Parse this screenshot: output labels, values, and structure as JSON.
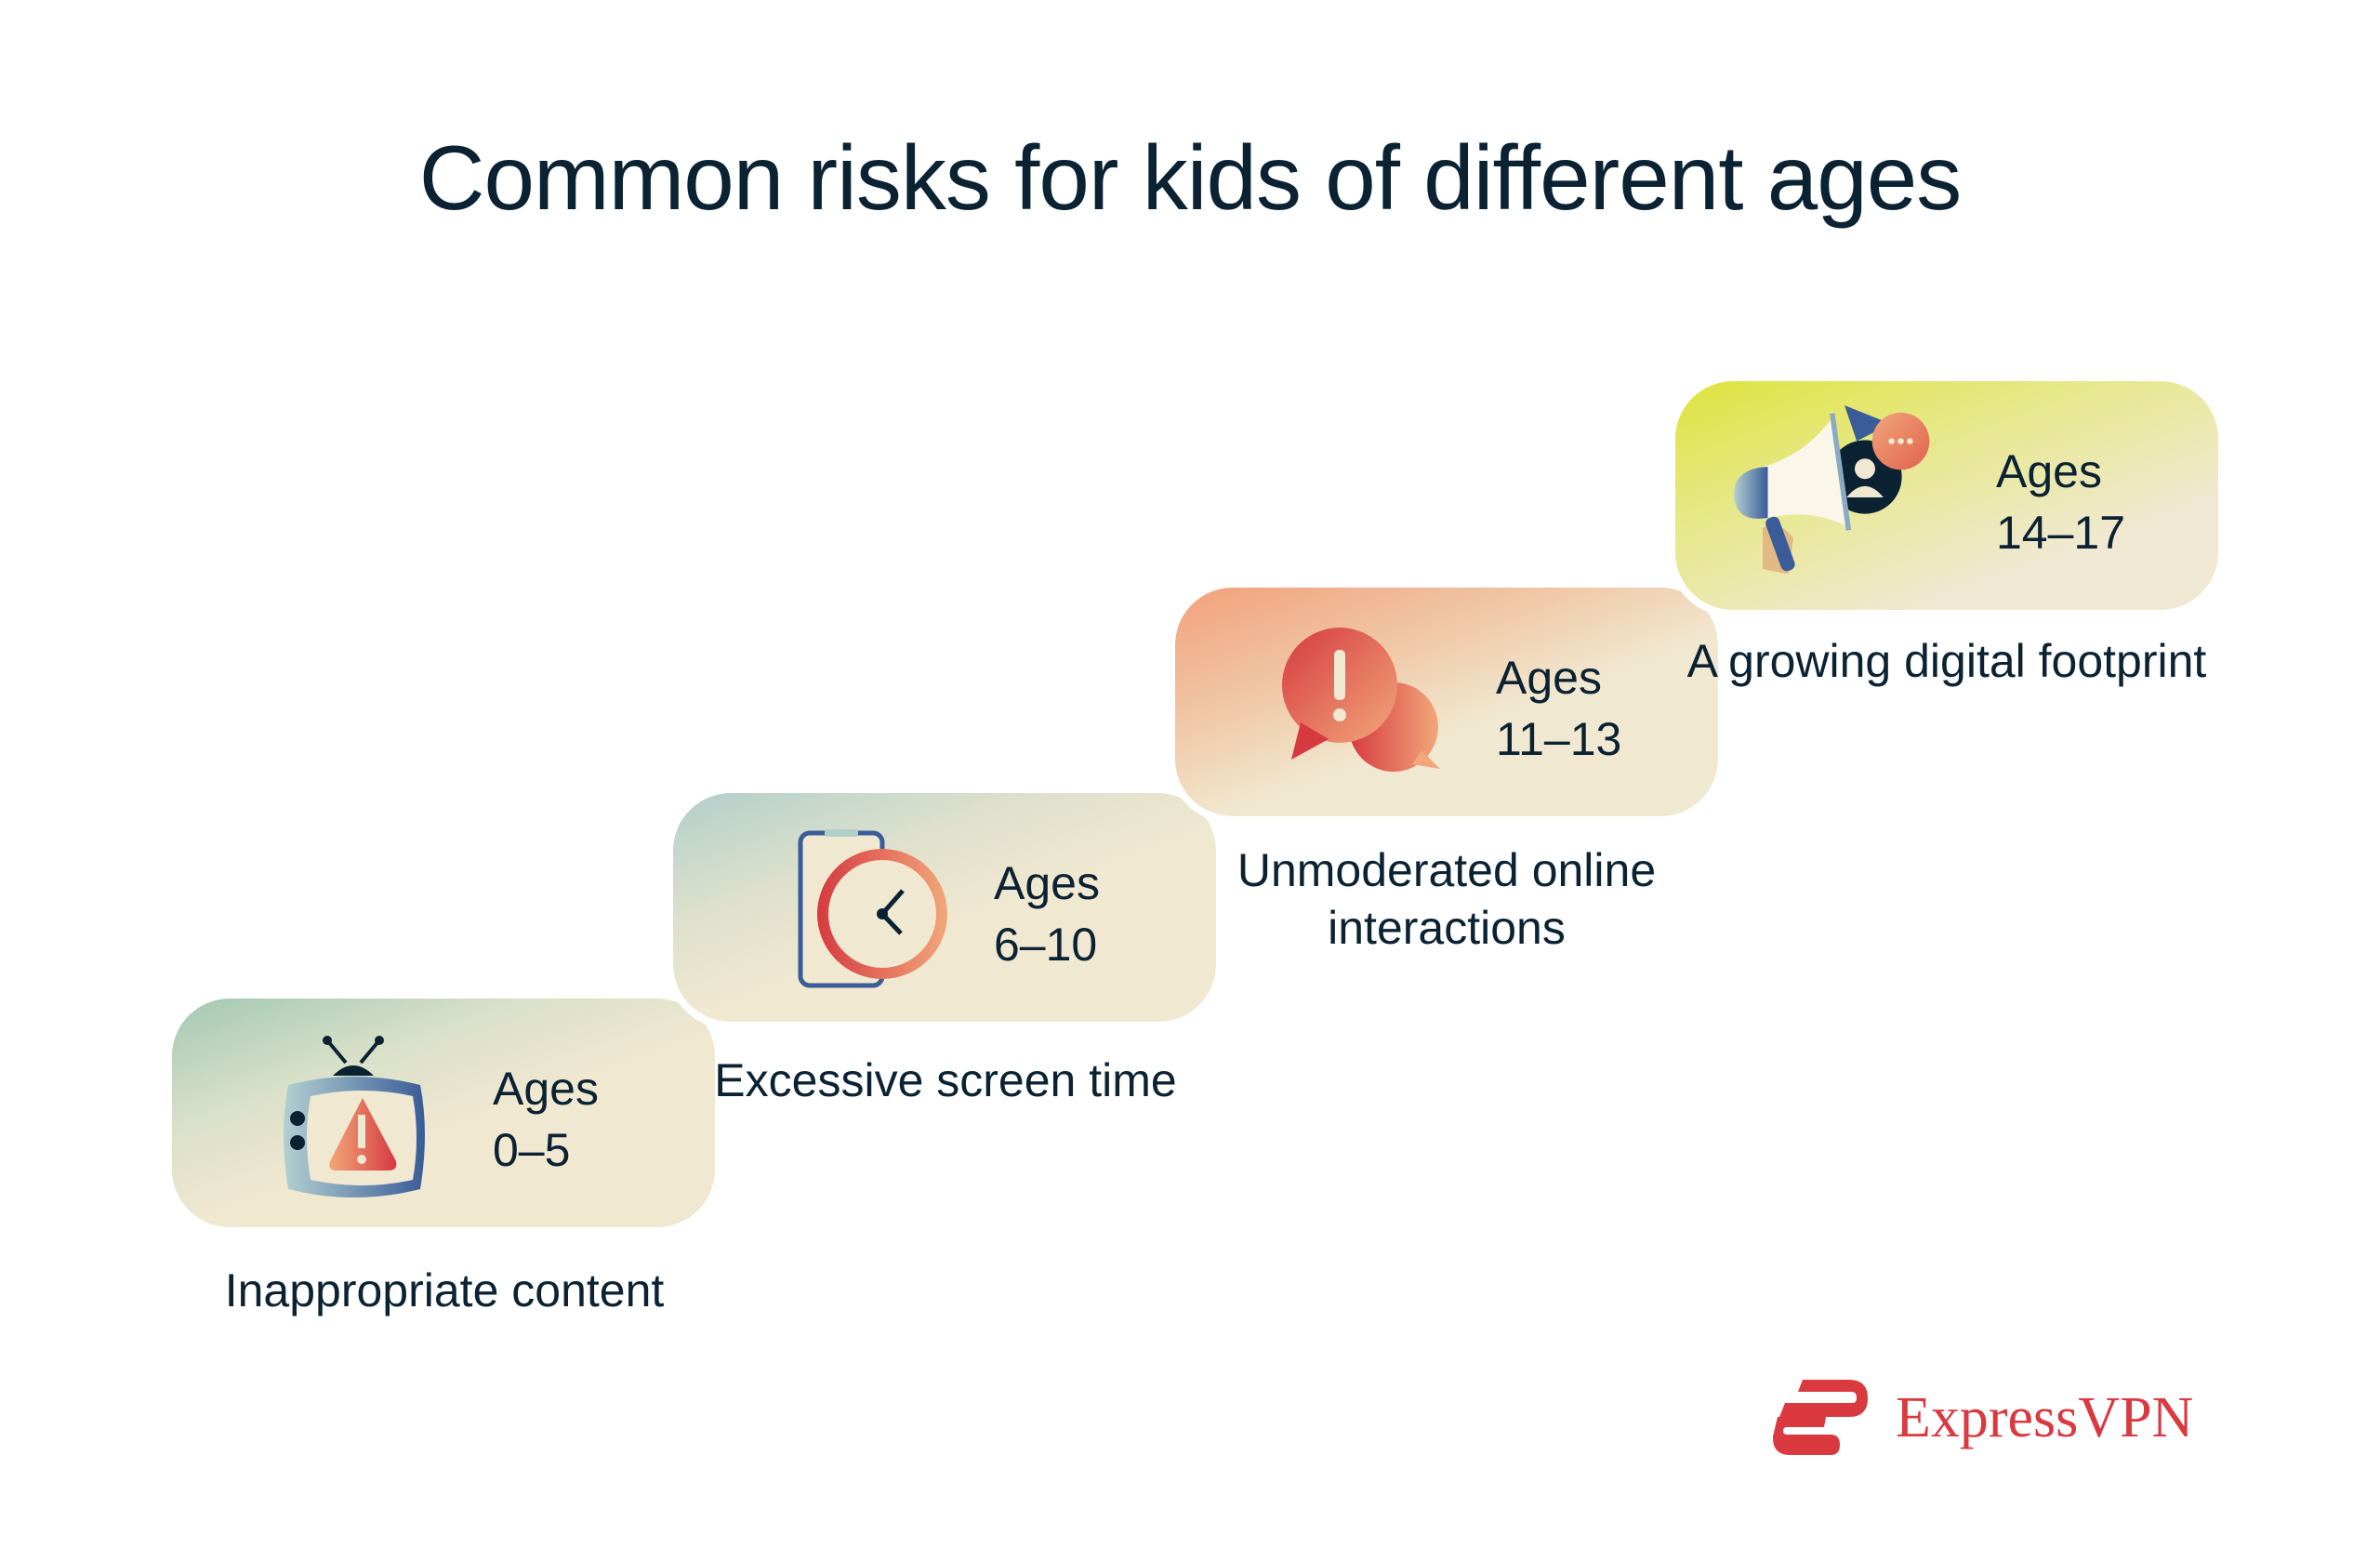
{
  "title": "Common risks for kids of different ages",
  "steps": [
    {
      "ages_label": "Ages",
      "ages_range": "0–5",
      "risk": "Inappropriate content",
      "icon": "tv-warning-icon",
      "accent": "#a2c8b2"
    },
    {
      "ages_label": "Ages",
      "ages_range": "6–10",
      "risk": "Excessive screen time",
      "icon": "phone-clock-icon",
      "accent": "#b1cfcb"
    },
    {
      "ages_label": "Ages",
      "ages_range": "11–13",
      "risk": "Unmoderated online interactions",
      "icon": "chat-alert-icon",
      "accent": "#f2a07b"
    },
    {
      "ages_label": "Ages",
      "ages_range": "14–17",
      "risk": "A growing digital footprint",
      "icon": "megaphone-icon",
      "accent": "#dfe33c"
    }
  ],
  "brand": {
    "name": "ExpressVPN",
    "color": "#da3940"
  },
  "text_color": "#0b2233"
}
